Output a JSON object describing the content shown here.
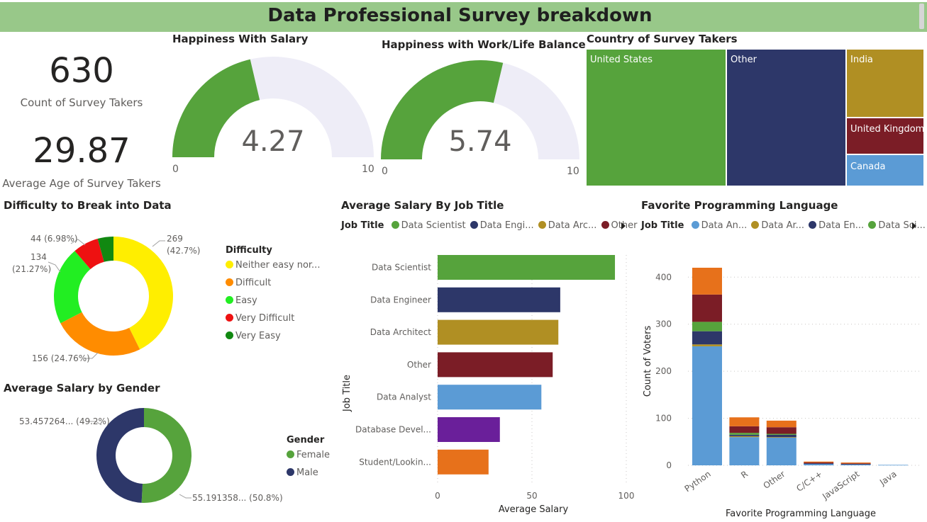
{
  "header": {
    "title": "Data Professional Survey breakdown"
  },
  "kpis": [
    {
      "value": "630",
      "label": "Count of Survey Takers"
    },
    {
      "value": "29.87",
      "label": "Average Age of Survey Takers"
    }
  ],
  "colors": {
    "green": "#56a33c",
    "navy": "#2d3769",
    "gold": "#b08f23",
    "maroon": "#7b1d26",
    "blue": "#5b9bd5",
    "purple": "#6a1f9a",
    "orange": "#e7711b",
    "track": "#eeedf7"
  },
  "chart_data": [
    {
      "type": "gauge",
      "title": "Happiness With Salary",
      "value": 4.27,
      "value_label": "4.27",
      "min": 0,
      "max": 10,
      "min_label": "0",
      "max_label": "10"
    },
    {
      "type": "gauge",
      "title": "Happiness with Work/Life Balance",
      "value": 5.74,
      "value_label": "5.74",
      "min": 0,
      "max": 10,
      "min_label": "0",
      "max_label": "10"
    },
    {
      "type": "treemap",
      "title": "Country of Survey Takers",
      "categories": [
        "United States",
        "Other",
        "India",
        "United Kingdom",
        "Canada"
      ]
    },
    {
      "type": "pie",
      "variant": "donut",
      "title": "Difficulty to Break into Data",
      "legend_title": "Difficulty",
      "legend_labels": [
        "Neither easy nor...",
        "Difficult",
        "Easy",
        "Very Difficult",
        "Very Easy"
      ],
      "categories": [
        "Neither easy nor difficult",
        "Difficult",
        "Easy",
        "Very Difficult",
        "Very Easy"
      ],
      "values": [
        269,
        156,
        134,
        44,
        27
      ],
      "colors": [
        "#ffee00",
        "#ff8c00",
        "#22ee22",
        "#ee1111",
        "#118811"
      ],
      "labels": [
        "269\n(42.7%)",
        "156 (24.76%)",
        "134\n(21.27%)",
        "44 (6.98%)",
        ""
      ]
    },
    {
      "type": "pie",
      "variant": "donut",
      "title": "Average Salary by Gender",
      "legend_title": "Gender",
      "categories": [
        "Female",
        "Male"
      ],
      "values": [
        55.191358,
        53.457264
      ],
      "colors": [
        "#56a33c",
        "#2d3769"
      ],
      "labels": [
        "55.191358... (50.8%)",
        "53.457264... (49.2%)"
      ]
    },
    {
      "type": "bar",
      "orientation": "horizontal",
      "title": "Average Salary By Job Title",
      "legend_title": "Job Title",
      "legend_labels": [
        "Data Scientist",
        "Data Engi...",
        "Data Arc...",
        "Other"
      ],
      "categories": [
        "Data Scientist",
        "Data Engineer",
        "Data Architect",
        "Other",
        "Data Analyst",
        "Database Devel...",
        "Student/Lookin..."
      ],
      "values": [
        94,
        65,
        64,
        61,
        55,
        33,
        27
      ],
      "colors": [
        "#56a33c",
        "#2d3769",
        "#b08f23",
        "#7b1d26",
        "#5b9bd5",
        "#6a1f9a",
        "#e7711b"
      ],
      "xlabel": "Average Salary",
      "ylabel": "Job Title",
      "xlim": [
        0,
        100
      ],
      "xticks": [
        "0",
        "50",
        "100"
      ]
    },
    {
      "type": "bar",
      "variant": "stacked",
      "title": "Favorite Programming Language",
      "legend_title": "Job Title",
      "legend_labels": [
        "Data An...",
        "Data Ar...",
        "Data En...",
        "Data Sci..."
      ],
      "categories": [
        "Python",
        "R",
        "Other",
        "C/C++",
        "JavaScript",
        "Java"
      ],
      "series": [
        {
          "name": "Data Analyst",
          "color": "#5b9bd5",
          "values": [
            253,
            60,
            59,
            3,
            2,
            1
          ]
        },
        {
          "name": "Data Architect",
          "color": "#b08f23",
          "values": [
            4,
            2,
            1,
            0,
            0,
            0
          ]
        },
        {
          "name": "Data Engineer",
          "color": "#2d3769",
          "values": [
            28,
            3,
            5,
            1,
            1,
            0
          ]
        },
        {
          "name": "Data Scientist",
          "color": "#56a33c",
          "values": [
            20,
            4,
            2,
            0,
            0,
            0
          ]
        },
        {
          "name": "Other",
          "color": "#7b1d26",
          "values": [
            58,
            14,
            14,
            2,
            1,
            0
          ]
        },
        {
          "name": "Student/Looking/None",
          "color": "#e7711b",
          "values": [
            57,
            19,
            14,
            2,
            2,
            0
          ]
        }
      ],
      "xlabel": "Favorite Programming Language",
      "ylabel": "Count of Voters",
      "ylim": [
        0,
        420
      ],
      "yticks": [
        "0",
        "100",
        "200",
        "300",
        "400"
      ]
    }
  ]
}
